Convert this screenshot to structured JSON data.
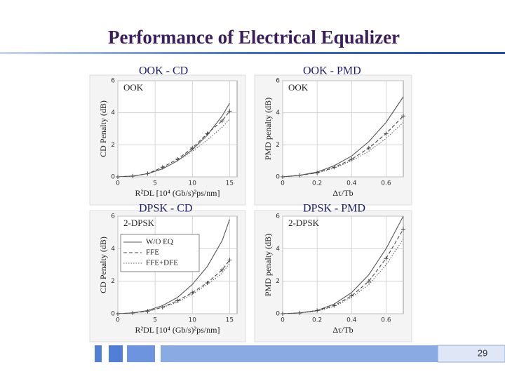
{
  "title": "Performance of Electrical Equalizer",
  "page_number": "29",
  "chart_data": [
    {
      "type": "line",
      "title": "OOK - CD",
      "annotation": "OOK",
      "x_label": "R²DL [10⁴ (Gb/s)²ps/nm]",
      "y_label": "CD Penalty (dB)",
      "x": [
        0,
        2,
        4,
        6,
        8,
        10,
        12,
        14,
        15
      ],
      "xlim": [
        0,
        16
      ],
      "xticks": [
        0,
        5,
        10,
        15
      ],
      "ylim": [
        0,
        6
      ],
      "yticks": [
        0,
        2,
        4,
        6
      ],
      "grid": true,
      "series": [
        {
          "color": "#555555",
          "line_style": "solid",
          "values": [
            0,
            0.05,
            0.2,
            0.5,
            1.0,
            1.7,
            2.6,
            3.8,
            4.6
          ]
        },
        {
          "color": "#444444",
          "line_style": "dashed",
          "marker": "cross",
          "values": [
            0,
            0.05,
            0.2,
            0.6,
            1.1,
            1.8,
            2.7,
            3.5,
            4.1
          ]
        },
        {
          "color": "#666666",
          "line_style": "dotted",
          "values": [
            0,
            0.05,
            0.2,
            0.5,
            1.0,
            1.6,
            2.3,
            3.1,
            3.6
          ]
        }
      ]
    },
    {
      "type": "line",
      "title": "OOK - PMD",
      "annotation": "OOK",
      "x_label": "Δτ/Tb",
      "y_label": "PMD penalty (dB)",
      "x": [
        0,
        0.1,
        0.2,
        0.3,
        0.4,
        0.5,
        0.6,
        0.7
      ],
      "xlim": [
        0,
        0.7
      ],
      "xticks": [
        0,
        0.2,
        0.4,
        0.6
      ],
      "ylim": [
        0,
        6
      ],
      "yticks": [
        0,
        2,
        4,
        6
      ],
      "grid": true,
      "series": [
        {
          "color": "#555555",
          "line_style": "solid",
          "values": [
            0,
            0.1,
            0.3,
            0.7,
            1.3,
            2.2,
            3.4,
            5.0
          ]
        },
        {
          "color": "#444444",
          "line_style": "dashed",
          "marker": "cross",
          "values": [
            0,
            0.1,
            0.25,
            0.6,
            1.1,
            1.8,
            2.7,
            3.8
          ]
        },
        {
          "color": "#666666",
          "line_style": "dotted",
          "values": [
            0,
            0.1,
            0.25,
            0.55,
            1.0,
            1.6,
            2.4,
            3.4
          ]
        }
      ]
    },
    {
      "type": "line",
      "title": "DPSK - CD",
      "annotation": "2-DPSK",
      "x_label": "R²DL [10⁴ (Gb/s)²ps/nm]",
      "y_label": "CD Penalty (dB)",
      "x": [
        0,
        2,
        4,
        6,
        8,
        10,
        12,
        14,
        15
      ],
      "xlim": [
        0,
        16
      ],
      "xticks": [
        0,
        5,
        10,
        15
      ],
      "ylim": [
        0,
        6
      ],
      "yticks": [
        0,
        2,
        4,
        6
      ],
      "grid": true,
      "legend": "upper left",
      "series": [
        {
          "name": "W/O EQ",
          "color": "#555555",
          "line_style": "solid",
          "values": [
            0,
            0.05,
            0.2,
            0.5,
            1.0,
            1.8,
            2.9,
            4.5,
            5.8
          ]
        },
        {
          "name": "FFE",
          "color": "#444444",
          "line_style": "dashed",
          "marker": "cross",
          "values": [
            0,
            0.05,
            0.15,
            0.4,
            0.8,
            1.3,
            1.9,
            2.7,
            3.3
          ]
        },
        {
          "name": "FFE+DFE",
          "color": "#666666",
          "line_style": "dotted",
          "values": [
            0,
            0.05,
            0.15,
            0.4,
            0.7,
            1.2,
            1.8,
            2.5,
            3.1
          ]
        }
      ]
    },
    {
      "type": "line",
      "title": "DPSK - PMD",
      "annotation": "2-DPSK",
      "x_label": "Δτ/Tb",
      "y_label": "PMD penalty (dB)",
      "x": [
        0,
        0.1,
        0.2,
        0.3,
        0.4,
        0.5,
        0.6,
        0.7
      ],
      "xlim": [
        0,
        0.7
      ],
      "xticks": [
        0,
        0.2,
        0.4,
        0.6
      ],
      "ylim": [
        0,
        6
      ],
      "yticks": [
        0,
        2,
        4,
        6
      ],
      "grid": true,
      "series": [
        {
          "color": "#555555",
          "line_style": "solid",
          "values": [
            0,
            0.05,
            0.2,
            0.6,
            1.3,
            2.4,
            4.0,
            6.0
          ]
        },
        {
          "color": "#444444",
          "line_style": "dashed",
          "marker": "cross",
          "values": [
            0,
            0.05,
            0.2,
            0.5,
            1.1,
            2.0,
            3.4,
            5.2
          ]
        },
        {
          "color": "#666666",
          "line_style": "dotted",
          "values": [
            0,
            0.05,
            0.15,
            0.45,
            1.0,
            1.8,
            3.0,
            4.6
          ]
        }
      ]
    }
  ]
}
